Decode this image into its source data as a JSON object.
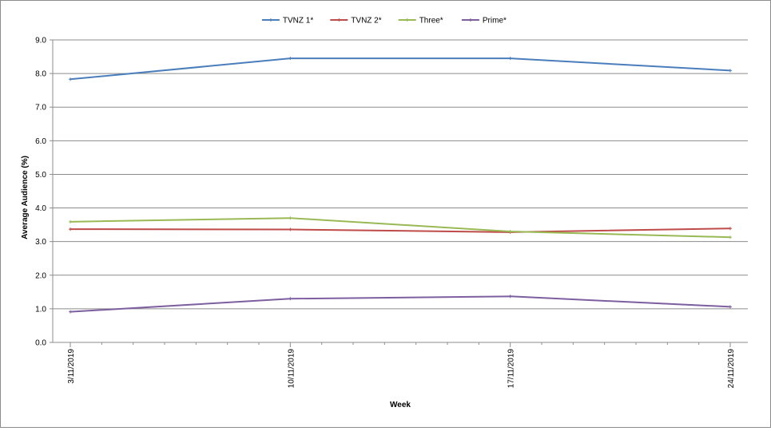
{
  "chart_data": {
    "type": "line",
    "title": "",
    "xlabel": "Week",
    "ylabel": "Average Audience (%)",
    "ylim": [
      0,
      9
    ],
    "yticks": [
      0.0,
      1.0,
      2.0,
      3.0,
      4.0,
      5.0,
      6.0,
      7.0,
      8.0,
      9.0
    ],
    "y_tick_decimals": 1,
    "grid": "horizontal",
    "legend": "top",
    "categories": [
      "3/11/2019",
      "10/11/2019",
      "17/11/2019",
      "24/11/2019"
    ],
    "series": [
      {
        "name": "TVNZ 1*",
        "color": "#4a7ebb",
        "values": [
          7.83,
          8.45,
          8.45,
          8.09
        ]
      },
      {
        "name": "TVNZ 2*",
        "color": "#be4b48",
        "values": [
          3.37,
          3.36,
          3.28,
          3.39
        ]
      },
      {
        "name": "Three*",
        "color": "#98b954",
        "values": [
          3.59,
          3.7,
          3.3,
          3.13
        ]
      },
      {
        "name": "Prime*",
        "color": "#7d5fa0",
        "values": [
          0.91,
          1.3,
          1.37,
          1.06
        ]
      }
    ]
  }
}
